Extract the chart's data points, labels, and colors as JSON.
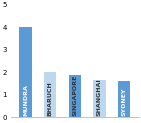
{
  "categories": [
    "MUNDRA",
    "BHARUCH",
    "SINGAPORE",
    "SHANGHAI",
    "SYDNEY"
  ],
  "values": [
    4.0,
    2.0,
    1.9,
    1.65,
    1.6
  ],
  "bar_colors": [
    "#5b9bd5",
    "#bdd7ee",
    "#5b9bd5",
    "#bdd7ee",
    "#5b9bd5"
  ],
  "ylim": [
    0,
    5
  ],
  "yticks": [
    0,
    1,
    2,
    3,
    4,
    5
  ],
  "bar_width": 0.5,
  "background_color": "#ffffff",
  "label_fontsize": 4.5,
  "label_colors": [
    "#ffffff",
    "#333333",
    "#333333",
    "#333333",
    "#ffffff"
  ],
  "tick_fontsize": 5.0
}
